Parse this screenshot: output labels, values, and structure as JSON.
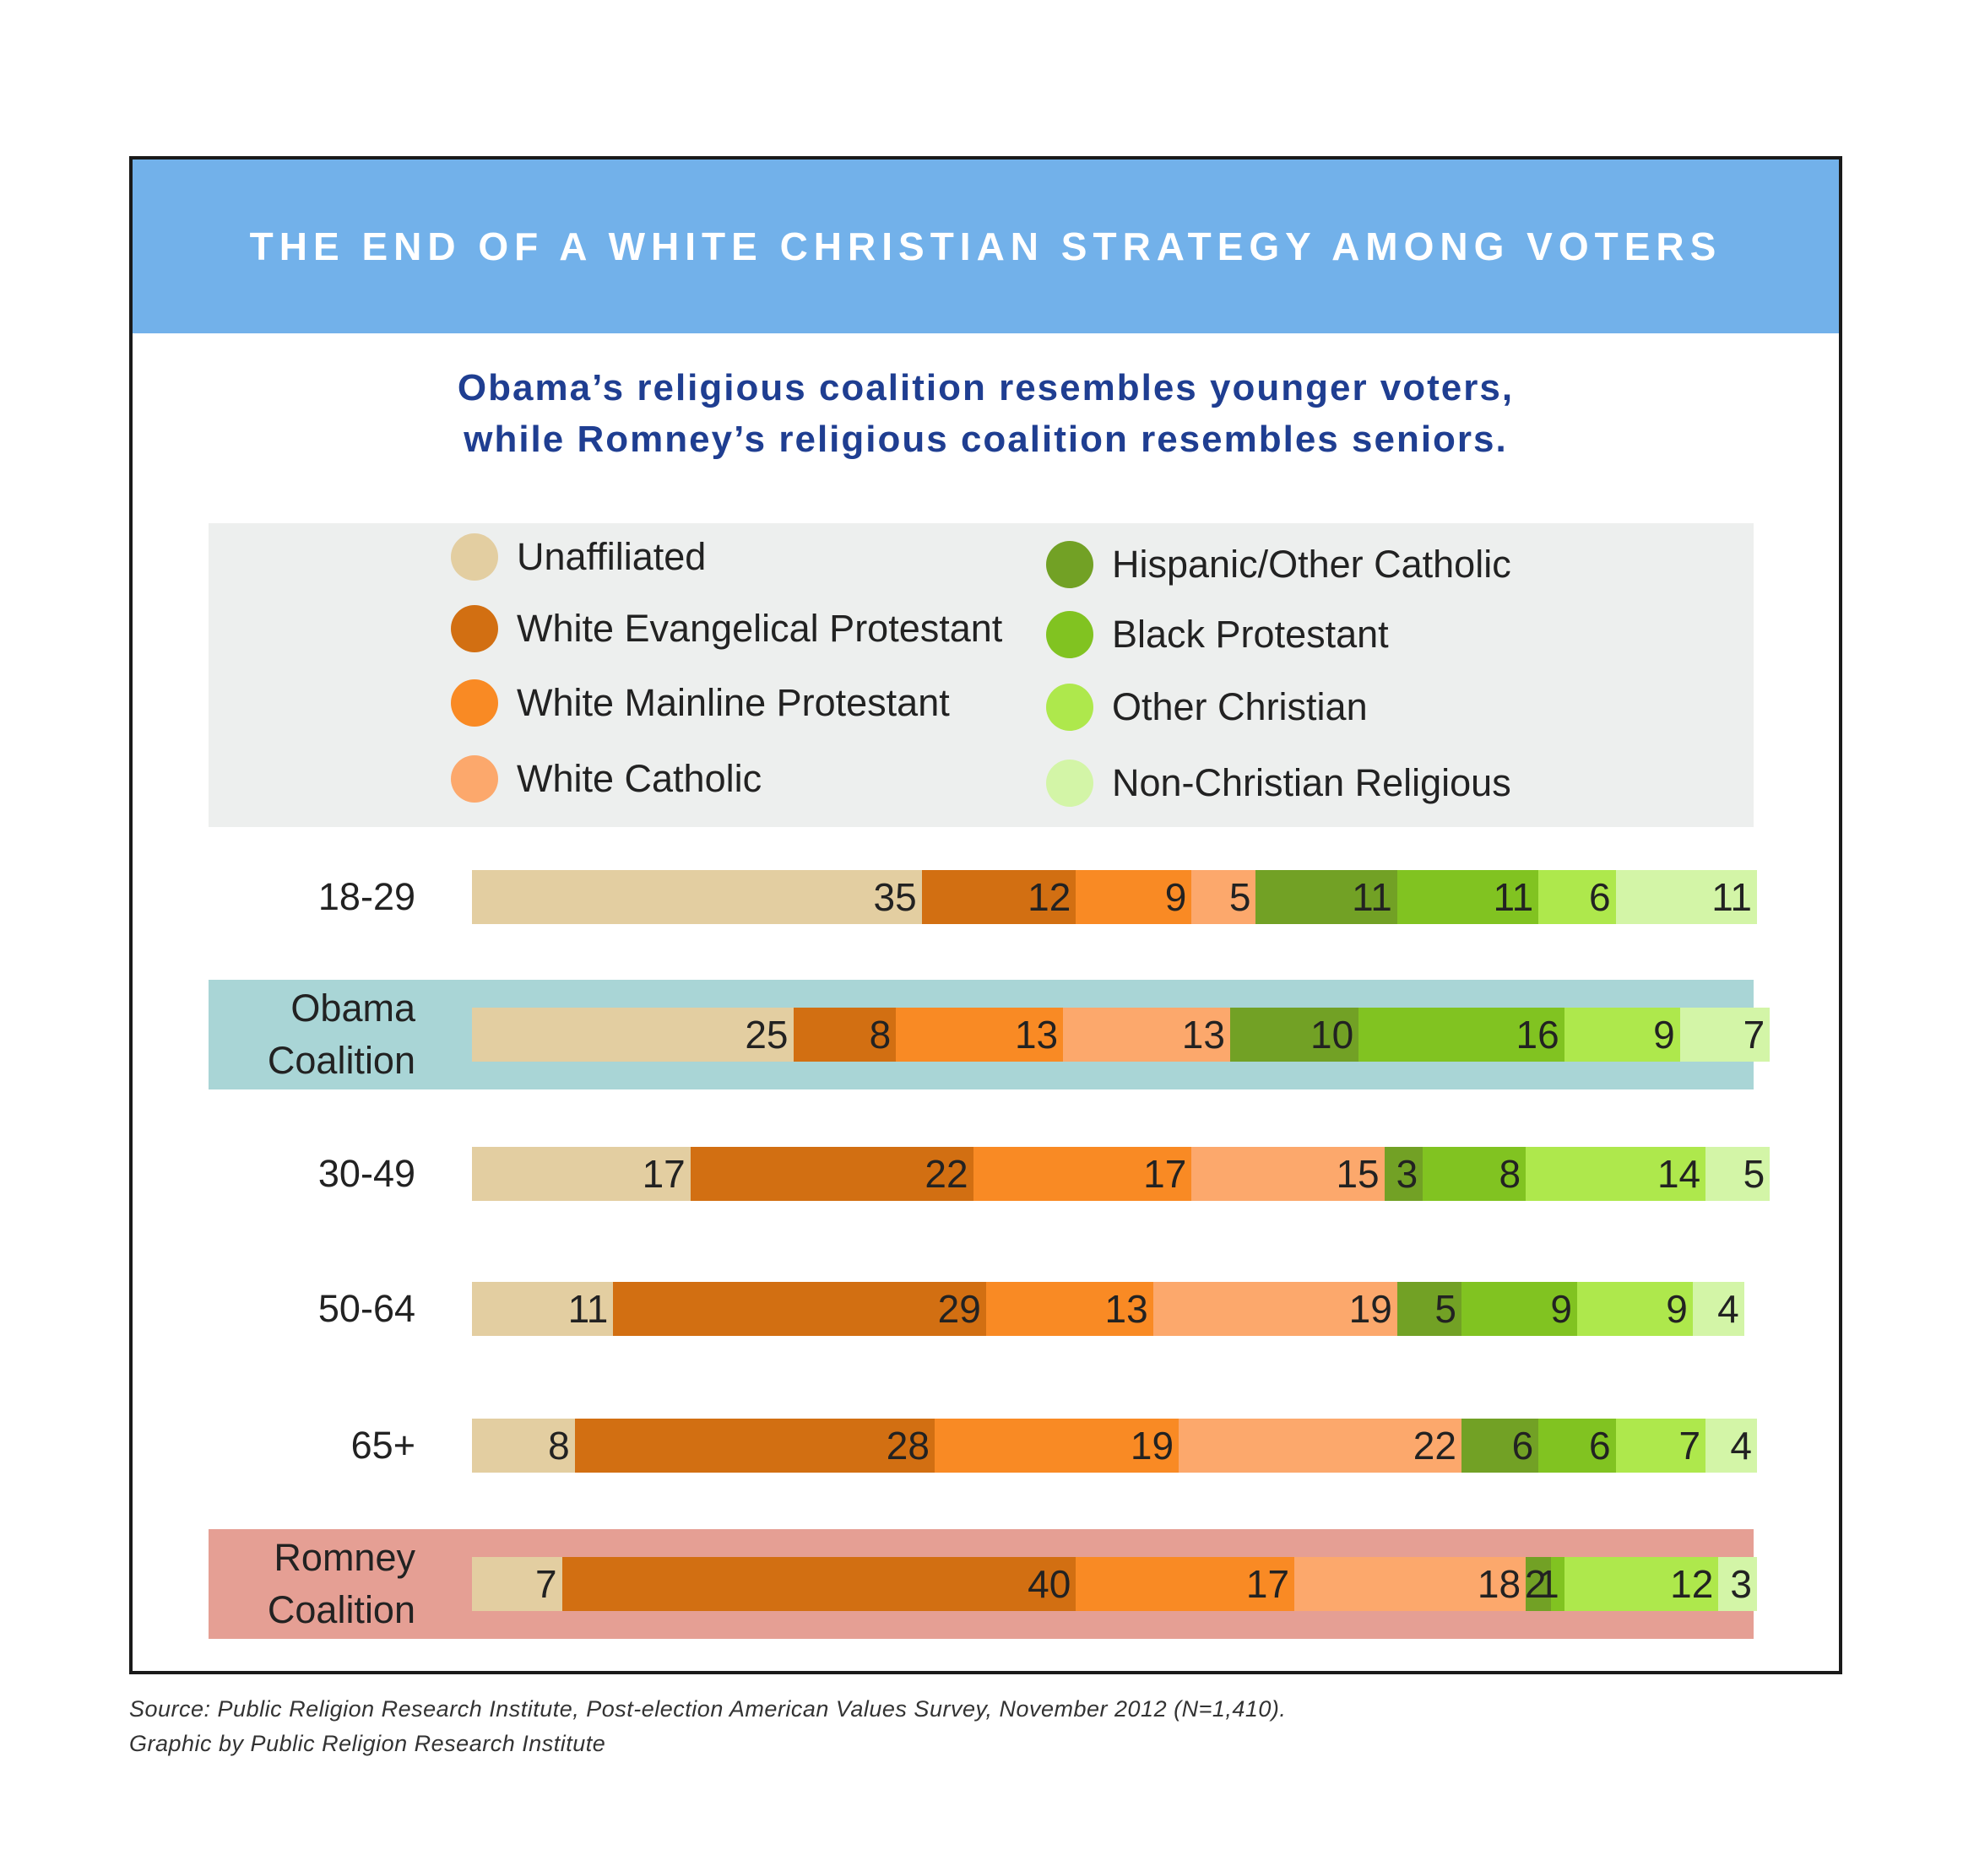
{
  "chart_data": {
    "type": "bar",
    "orientation": "horizontal",
    "stacked": true,
    "title": "THE END OF A WHITE CHRISTIAN STRATEGY AMONG VOTERS",
    "subtitle": [
      "Obama’s religious coalition resembles younger voters,",
      "while Romney’s religious coalition resembles seniors."
    ],
    "unit": "percent",
    "legend": [
      {
        "name": "Unaffiliated",
        "color": "#e3cea1"
      },
      {
        "name": "White Evangelical Protestant",
        "color": "#d26f12"
      },
      {
        "name": "White Mainline Protestant",
        "color": "#f98a24"
      },
      {
        "name": "White Catholic",
        "color": "#fca86c"
      },
      {
        "name": "Hispanic/Other Catholic",
        "color": "#72a125"
      },
      {
        "name": "Black Protestant",
        "color": "#81c321"
      },
      {
        "name": "Other Christian",
        "color": "#aee84c"
      },
      {
        "name": "Non-Christian Religious",
        "color": "#d3f5a7"
      }
    ],
    "rows": [
      {
        "label": [
          "18-29"
        ],
        "highlight": null,
        "values": [
          35,
          12,
          9,
          5,
          11,
          11,
          6,
          11
        ]
      },
      {
        "label": [
          "Obama",
          "Coalition"
        ],
        "highlight": "#a9d5d6",
        "values": [
          25,
          8,
          13,
          13,
          10,
          16,
          9,
          7
        ]
      },
      {
        "label": [
          "30-49"
        ],
        "highlight": null,
        "values": [
          17,
          22,
          17,
          15,
          3,
          8,
          14,
          5
        ]
      },
      {
        "label": [
          "50-64"
        ],
        "highlight": null,
        "values": [
          11,
          29,
          13,
          19,
          5,
          9,
          9,
          4
        ]
      },
      {
        "label": [
          "65+"
        ],
        "highlight": null,
        "values": [
          8,
          28,
          19,
          22,
          6,
          6,
          7,
          4
        ]
      },
      {
        "label": [
          "Romney",
          "Coalition"
        ],
        "highlight": "#e59f94",
        "values": [
          7,
          40,
          17,
          18,
          2,
          1,
          12,
          3
        ]
      }
    ]
  },
  "source": [
    "Source: Public Religion Research Institute, Post-election American Values Survey, November 2012 (N=1,410).",
    "Graphic by Public Religion Research Institute"
  ]
}
